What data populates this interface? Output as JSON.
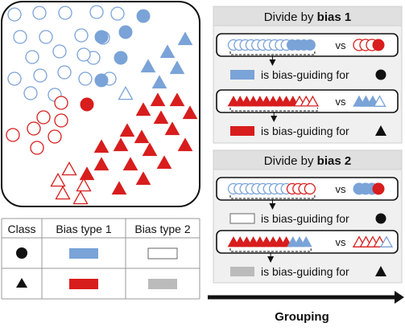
{
  "colors": {
    "blue": "#7aa3d8",
    "red": "#d81d1d",
    "gray_fill": "#bbbbbb",
    "panel_bg": "#f0f0f0",
    "header_bg": "#e0e0e0",
    "border": "#111111"
  },
  "scatter": {
    "groups": [
      {
        "name": "class-circle-bias1-blue-bias2-white",
        "shape": "circle",
        "color": "blue",
        "fill": "hollow",
        "count": 20
      },
      {
        "name": "class-circle-bias1-blue-bias2-blue",
        "shape": "circle",
        "color": "blue",
        "fill": "solid",
        "count": 5
      },
      {
        "name": "class-circle-bias1-red-bias2-white",
        "shape": "circle",
        "color": "red",
        "fill": "hollow",
        "count": 7
      },
      {
        "name": "class-circle-bias1-red-bias2-red",
        "shape": "circle",
        "color": "red",
        "fill": "solid",
        "count": 1
      },
      {
        "name": "class-triangle-bias1-blue-bias2-gray",
        "shape": "triangle",
        "color": "blue",
        "fill": "solid",
        "count": 5
      },
      {
        "name": "class-triangle-bias1-blue-bias2-white",
        "shape": "triangle",
        "color": "blue",
        "fill": "hollow",
        "count": 1
      },
      {
        "name": "class-triangle-bias1-red-bias2-gray",
        "shape": "triangle",
        "color": "red",
        "fill": "solid",
        "count": 18
      },
      {
        "name": "class-triangle-bias1-red-bias2-white",
        "shape": "triangle",
        "color": "red",
        "fill": "hollow",
        "count": 5
      }
    ]
  },
  "legend_table": {
    "headers": [
      "Class",
      "Bias type 1",
      "Bias type 2"
    ],
    "rows": [
      {
        "class_shape": "circle",
        "bias1": "blue",
        "bias2": "white"
      },
      {
        "class_shape": "triangle",
        "bias1": "red",
        "bias2": "gray"
      }
    ]
  },
  "panel1": {
    "title_prefix": "Divide by ",
    "title_bold": "bias 1",
    "rows": [
      {
        "left": {
          "shape": "circle",
          "hollow_blue": 10,
          "solid_blue": 4
        },
        "vs": "vs",
        "right": {
          "shape": "circle",
          "hollow_red": 3,
          "solid_red": 1
        },
        "result_swatch": "blue",
        "result_text": "is bias-guiding for",
        "target_shape": "circle"
      },
      {
        "left": {
          "shape": "triangle",
          "solid_red": 10,
          "hollow_red": 3
        },
        "vs": "vs",
        "right": {
          "shape": "triangle",
          "solid_blue": 3,
          "hollow_blue": 1
        },
        "result_swatch": "red",
        "result_text": "is bias-guiding for",
        "target_shape": "triangle"
      }
    ]
  },
  "panel2": {
    "title_prefix": "Divide by ",
    "title_bold": "bias 2",
    "rows": [
      {
        "left": {
          "shape": "circle",
          "hollow_blue": 10,
          "hollow_red": 4
        },
        "vs": "vs",
        "right": {
          "shape": "circle",
          "solid_blue": 3,
          "solid_red": 1
        },
        "result_swatch": "white",
        "result_text": "is bias-guiding for",
        "target_shape": "circle"
      },
      {
        "left": {
          "shape": "triangle",
          "solid_red": 9,
          "solid_blue": 3
        },
        "vs": "vs",
        "right": {
          "shape": "triangle",
          "hollow_red": 4,
          "hollow_blue": 1
        },
        "result_swatch": "gray",
        "result_text": "is bias-guiding for",
        "target_shape": "triangle"
      }
    ]
  },
  "grouping_label": "Grouping"
}
